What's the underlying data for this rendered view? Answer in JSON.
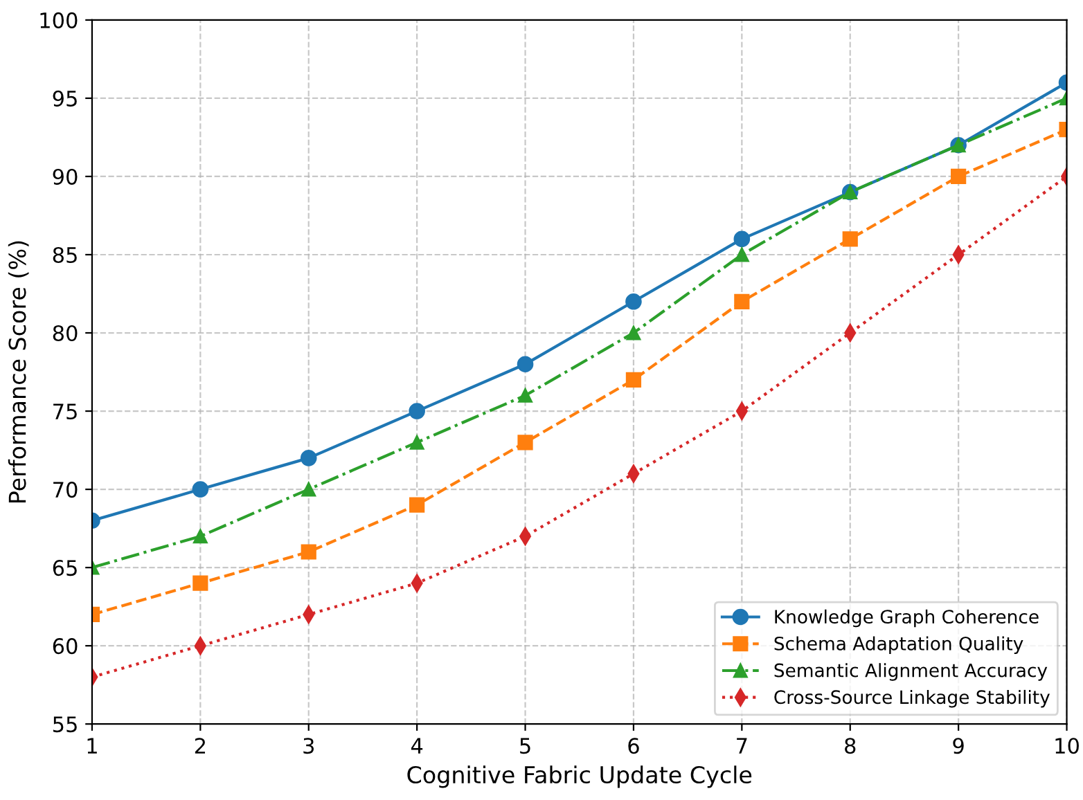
{
  "chart_data": {
    "type": "line",
    "xlabel": "Cognitive Fabric Update Cycle",
    "ylabel": "Performance Score (%)",
    "x": [
      1,
      2,
      3,
      4,
      5,
      6,
      7,
      8,
      9,
      10
    ],
    "series": [
      {
        "name": "Knowledge Graph Coherence",
        "color": "#1f77b4",
        "marker": "circle",
        "line_style": "solid",
        "values": [
          68,
          70,
          72,
          75,
          78,
          82,
          86,
          89,
          92,
          96
        ]
      },
      {
        "name": "Schema Adaptation Quality",
        "color": "#ff7f0e",
        "marker": "square",
        "line_style": "dashed",
        "values": [
          62,
          64,
          66,
          69,
          73,
          77,
          82,
          86,
          90,
          93
        ]
      },
      {
        "name": "Semantic Alignment Accuracy",
        "color": "#2ca02c",
        "marker": "triangle",
        "line_style": "dashdot",
        "values": [
          65,
          67,
          70,
          73,
          76,
          80,
          85,
          89,
          92,
          95
        ]
      },
      {
        "name": "Cross-Source Linkage Stability",
        "color": "#d62728",
        "marker": "diamond",
        "line_style": "dotted",
        "values": [
          58,
          60,
          62,
          64,
          67,
          71,
          75,
          80,
          85,
          90
        ]
      }
    ],
    "xlim": [
      1,
      10
    ],
    "xticks": [
      1,
      2,
      3,
      4,
      5,
      6,
      7,
      8,
      9,
      10
    ],
    "ylim": [
      55,
      100
    ],
    "yticks": [
      55,
      60,
      65,
      70,
      75,
      80,
      85,
      90,
      95,
      100
    ],
    "grid": true,
    "legend": "bottom right"
  }
}
